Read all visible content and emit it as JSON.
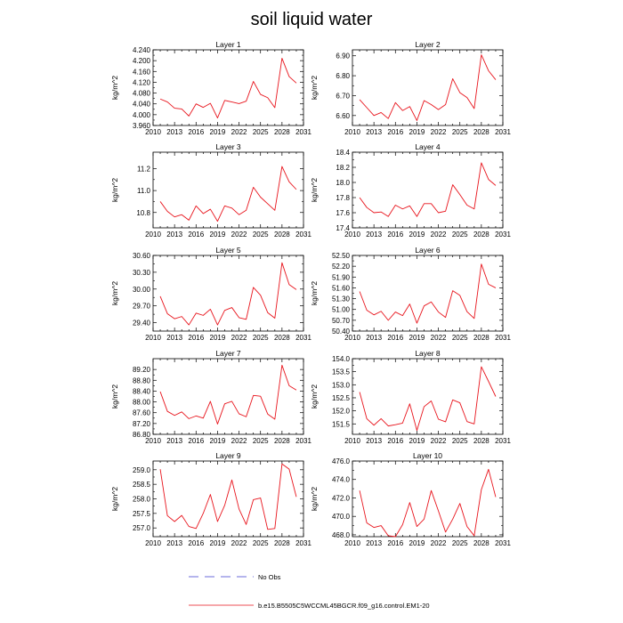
{
  "title": "soil liquid water",
  "legend": {
    "obs_label": "No Obs",
    "model_label": "b.e15.B5505C5WCCML45BGCR.f09_g16.control.EM1-20",
    "colors": {
      "obs": "#3b3bcf",
      "model": "#e8141c"
    }
  },
  "chart_data": [
    {
      "type": "line",
      "title": "Layer 1",
      "ylabel": "kg/m^2",
      "x": [
        2011,
        2012,
        2013,
        2014,
        2015,
        2016,
        2017,
        2018,
        2019,
        2020,
        2021,
        2022,
        2023,
        2024,
        2025,
        2026,
        2027,
        2028,
        2029,
        2030
      ],
      "xticks": [
        "2010",
        "2013",
        "2016",
        "2019",
        "2022",
        "2025",
        "2028",
        "2031"
      ],
      "yticks": [
        "3.960",
        "4.000",
        "4.040",
        "4.080",
        "4.120",
        "4.160",
        "4.200",
        "4.240"
      ],
      "xlim": [
        2010,
        2031
      ],
      "ylim": [
        3.96,
        4.24
      ],
      "series": [
        {
          "values": [
            4.058,
            4.047,
            4.024,
            4.021,
            3.995,
            4.04,
            4.027,
            4.042,
            3.988,
            4.053,
            4.047,
            4.041,
            4.05,
            4.123,
            4.075,
            4.063,
            4.026,
            4.209,
            4.141,
            4.117
          ]
        }
      ]
    },
    {
      "type": "line",
      "title": "Layer 2",
      "ylabel": "kg/m^2",
      "x": [
        2011,
        2012,
        2013,
        2014,
        2015,
        2016,
        2017,
        2018,
        2019,
        2020,
        2021,
        2022,
        2023,
        2024,
        2025,
        2026,
        2027,
        2028,
        2029,
        2030
      ],
      "xticks": [
        "2010",
        "2013",
        "2016",
        "2019",
        "2022",
        "2025",
        "2028",
        "2031"
      ],
      "yticks": [
        "6.60",
        "6.70",
        "6.80",
        "6.90"
      ],
      "xlim": [
        2010,
        2031
      ],
      "ylim": [
        6.55,
        6.93
      ],
      "series": [
        {
          "values": [
            6.68,
            6.64,
            6.6,
            6.615,
            6.585,
            6.665,
            6.625,
            6.645,
            6.575,
            6.675,
            6.655,
            6.63,
            6.655,
            6.785,
            6.715,
            6.69,
            6.635,
            6.905,
            6.825,
            6.78
          ]
        }
      ]
    },
    {
      "type": "line",
      "title": "Layer 3",
      "ylabel": "kg/m^2",
      "x": [
        2011,
        2012,
        2013,
        2014,
        2015,
        2016,
        2017,
        2018,
        2019,
        2020,
        2021,
        2022,
        2023,
        2024,
        2025,
        2026,
        2027,
        2028,
        2029,
        2030
      ],
      "xticks": [
        "2010",
        "2013",
        "2016",
        "2019",
        "2022",
        "2025",
        "2028",
        "2031"
      ],
      "yticks": [
        "10.8",
        "11.0",
        "11.2"
      ],
      "xlim": [
        2010,
        2031
      ],
      "ylim": [
        10.66,
        11.35
      ],
      "series": [
        {
          "values": [
            10.9,
            10.81,
            10.76,
            10.78,
            10.73,
            10.86,
            10.79,
            10.83,
            10.72,
            10.86,
            10.84,
            10.78,
            10.82,
            11.03,
            10.94,
            10.88,
            10.82,
            11.22,
            11.08,
            11.01
          ]
        }
      ]
    },
    {
      "type": "line",
      "title": "Layer 4",
      "ylabel": "kg/m^2",
      "x": [
        2011,
        2012,
        2013,
        2014,
        2015,
        2016,
        2017,
        2018,
        2019,
        2020,
        2021,
        2022,
        2023,
        2024,
        2025,
        2026,
        2027,
        2028,
        2029,
        2030
      ],
      "xticks": [
        "2010",
        "2013",
        "2016",
        "2019",
        "2022",
        "2025",
        "2028",
        "2031"
      ],
      "yticks": [
        "17.4",
        "17.6",
        "17.8",
        "18.0",
        "18.2",
        "18.4"
      ],
      "xlim": [
        2010,
        2031
      ],
      "ylim": [
        17.4,
        18.4
      ],
      "series": [
        {
          "values": [
            17.8,
            17.67,
            17.6,
            17.61,
            17.55,
            17.7,
            17.65,
            17.69,
            17.55,
            17.72,
            17.72,
            17.6,
            17.62,
            17.97,
            17.84,
            17.7,
            17.65,
            18.26,
            18.04,
            17.96
          ]
        }
      ]
    },
    {
      "type": "line",
      "title": "Layer 5",
      "ylabel": "kg/m^2",
      "x": [
        2011,
        2012,
        2013,
        2014,
        2015,
        2016,
        2017,
        2018,
        2019,
        2020,
        2021,
        2022,
        2023,
        2024,
        2025,
        2026,
        2027,
        2028,
        2029,
        2030
      ],
      "xticks": [
        "2010",
        "2013",
        "2016",
        "2019",
        "2022",
        "2025",
        "2028",
        "2031"
      ],
      "yticks": [
        "29.40",
        "29.70",
        "30.00",
        "30.30",
        "30.60"
      ],
      "xlim": [
        2010,
        2031
      ],
      "ylim": [
        29.25,
        30.6
      ],
      "series": [
        {
          "values": [
            29.87,
            29.56,
            29.47,
            29.51,
            29.36,
            29.57,
            29.53,
            29.64,
            29.36,
            29.62,
            29.67,
            29.49,
            29.46,
            30.03,
            29.89,
            29.58,
            29.48,
            30.47,
            30.08,
            29.99
          ]
        }
      ]
    },
    {
      "type": "line",
      "title": "Layer 6",
      "ylabel": "kg/m^2",
      "x": [
        2011,
        2012,
        2013,
        2014,
        2015,
        2016,
        2017,
        2018,
        2019,
        2020,
        2021,
        2022,
        2023,
        2024,
        2025,
        2026,
        2027,
        2028,
        2029,
        2030
      ],
      "xticks": [
        "2010",
        "2013",
        "2016",
        "2019",
        "2022",
        "2025",
        "2028",
        "2031"
      ],
      "yticks": [
        "50.40",
        "50.70",
        "51.00",
        "51.30",
        "51.60",
        "51.90",
        "52.20",
        "52.50"
      ],
      "xlim": [
        2010,
        2031
      ],
      "ylim": [
        50.4,
        52.5
      ],
      "series": [
        {
          "values": [
            51.5,
            50.98,
            50.85,
            50.95,
            50.7,
            50.93,
            50.83,
            51.15,
            50.62,
            51.1,
            51.21,
            50.93,
            50.78,
            51.52,
            51.39,
            50.94,
            50.75,
            52.26,
            51.7,
            51.6
          ]
        }
      ]
    },
    {
      "type": "line",
      "title": "Layer 7",
      "ylabel": "kg/m^2",
      "x": [
        2011,
        2012,
        2013,
        2014,
        2015,
        2016,
        2017,
        2018,
        2019,
        2020,
        2021,
        2022,
        2023,
        2024,
        2025,
        2026,
        2027,
        2028,
        2029,
        2030
      ],
      "xticks": [
        "2010",
        "2013",
        "2016",
        "2019",
        "2022",
        "2025",
        "2028",
        "2031"
      ],
      "yticks": [
        "86.80",
        "87.20",
        "87.60",
        "88.00",
        "88.40",
        "88.80",
        "89.20"
      ],
      "xlim": [
        2010,
        2031
      ],
      "ylim": [
        86.8,
        89.6
      ],
      "series": [
        {
          "values": [
            88.38,
            87.65,
            87.5,
            87.63,
            87.38,
            87.48,
            87.4,
            88.02,
            87.18,
            87.93,
            88.02,
            87.56,
            87.45,
            88.24,
            88.21,
            87.55,
            87.36,
            89.36,
            88.6,
            88.44
          ]
        }
      ]
    },
    {
      "type": "line",
      "title": "Layer 8",
      "ylabel": "kg/m^2",
      "x": [
        2011,
        2012,
        2013,
        2014,
        2015,
        2016,
        2017,
        2018,
        2019,
        2020,
        2021,
        2022,
        2023,
        2024,
        2025,
        2026,
        2027,
        2028,
        2029,
        2030
      ],
      "xticks": [
        "2010",
        "2013",
        "2016",
        "2019",
        "2022",
        "2025",
        "2028",
        "2031"
      ],
      "yticks": [
        "151.5",
        "152.0",
        "152.5",
        "153.0",
        "153.5",
        "154.0"
      ],
      "xlim": [
        2010,
        2031
      ],
      "ylim": [
        151.1,
        154.0
      ],
      "series": [
        {
          "values": [
            152.72,
            151.7,
            151.45,
            151.7,
            151.42,
            151.47,
            151.53,
            152.27,
            151.25,
            152.16,
            152.38,
            151.68,
            151.58,
            152.42,
            152.31,
            151.59,
            151.5,
            153.69,
            153.13,
            152.55
          ]
        }
      ]
    },
    {
      "type": "line",
      "title": "Layer 9",
      "ylabel": "kg/m^2",
      "x": [
        2011,
        2012,
        2013,
        2014,
        2015,
        2016,
        2017,
        2018,
        2019,
        2020,
        2021,
        2022,
        2023,
        2024,
        2025,
        2026,
        2027,
        2028,
        2029,
        2030
      ],
      "xticks": [
        "2010",
        "2013",
        "2016",
        "2019",
        "2022",
        "2025",
        "2028",
        "2031"
      ],
      "yticks": [
        "257.0",
        "257.5",
        "258.0",
        "258.5",
        "259.0"
      ],
      "xlim": [
        2010,
        2031
      ],
      "ylim": [
        256.7,
        259.3
      ],
      "series": [
        {
          "values": [
            259.02,
            257.42,
            257.22,
            257.43,
            257.05,
            256.98,
            257.5,
            258.15,
            257.22,
            257.78,
            258.65,
            257.65,
            257.12,
            257.97,
            258.03,
            256.95,
            256.98,
            259.2,
            259.02,
            258.07
          ]
        }
      ]
    },
    {
      "type": "line",
      "title": "Layer 10",
      "ylabel": "kg/m^2",
      "x": [
        2011,
        2012,
        2013,
        2014,
        2015,
        2016,
        2017,
        2018,
        2019,
        2020,
        2021,
        2022,
        2023,
        2024,
        2025,
        2026,
        2027,
        2028,
        2029,
        2030
      ],
      "xticks": [
        "2010",
        "2013",
        "2016",
        "2019",
        "2022",
        "2025",
        "2028",
        "2031"
      ],
      "yticks": [
        "468.0",
        "470.0",
        "472.0",
        "474.0",
        "476.0"
      ],
      "xlim": [
        2010,
        2031
      ],
      "ylim": [
        467.8,
        476.0
      ],
      "series": [
        {
          "values": [
            472.8,
            469.3,
            468.8,
            469.0,
            467.9,
            467.8,
            469.1,
            471.5,
            468.9,
            469.7,
            472.8,
            470.6,
            468.3,
            469.7,
            471.4,
            468.9,
            467.9,
            472.9,
            475.1,
            472.1
          ]
        }
      ]
    }
  ]
}
